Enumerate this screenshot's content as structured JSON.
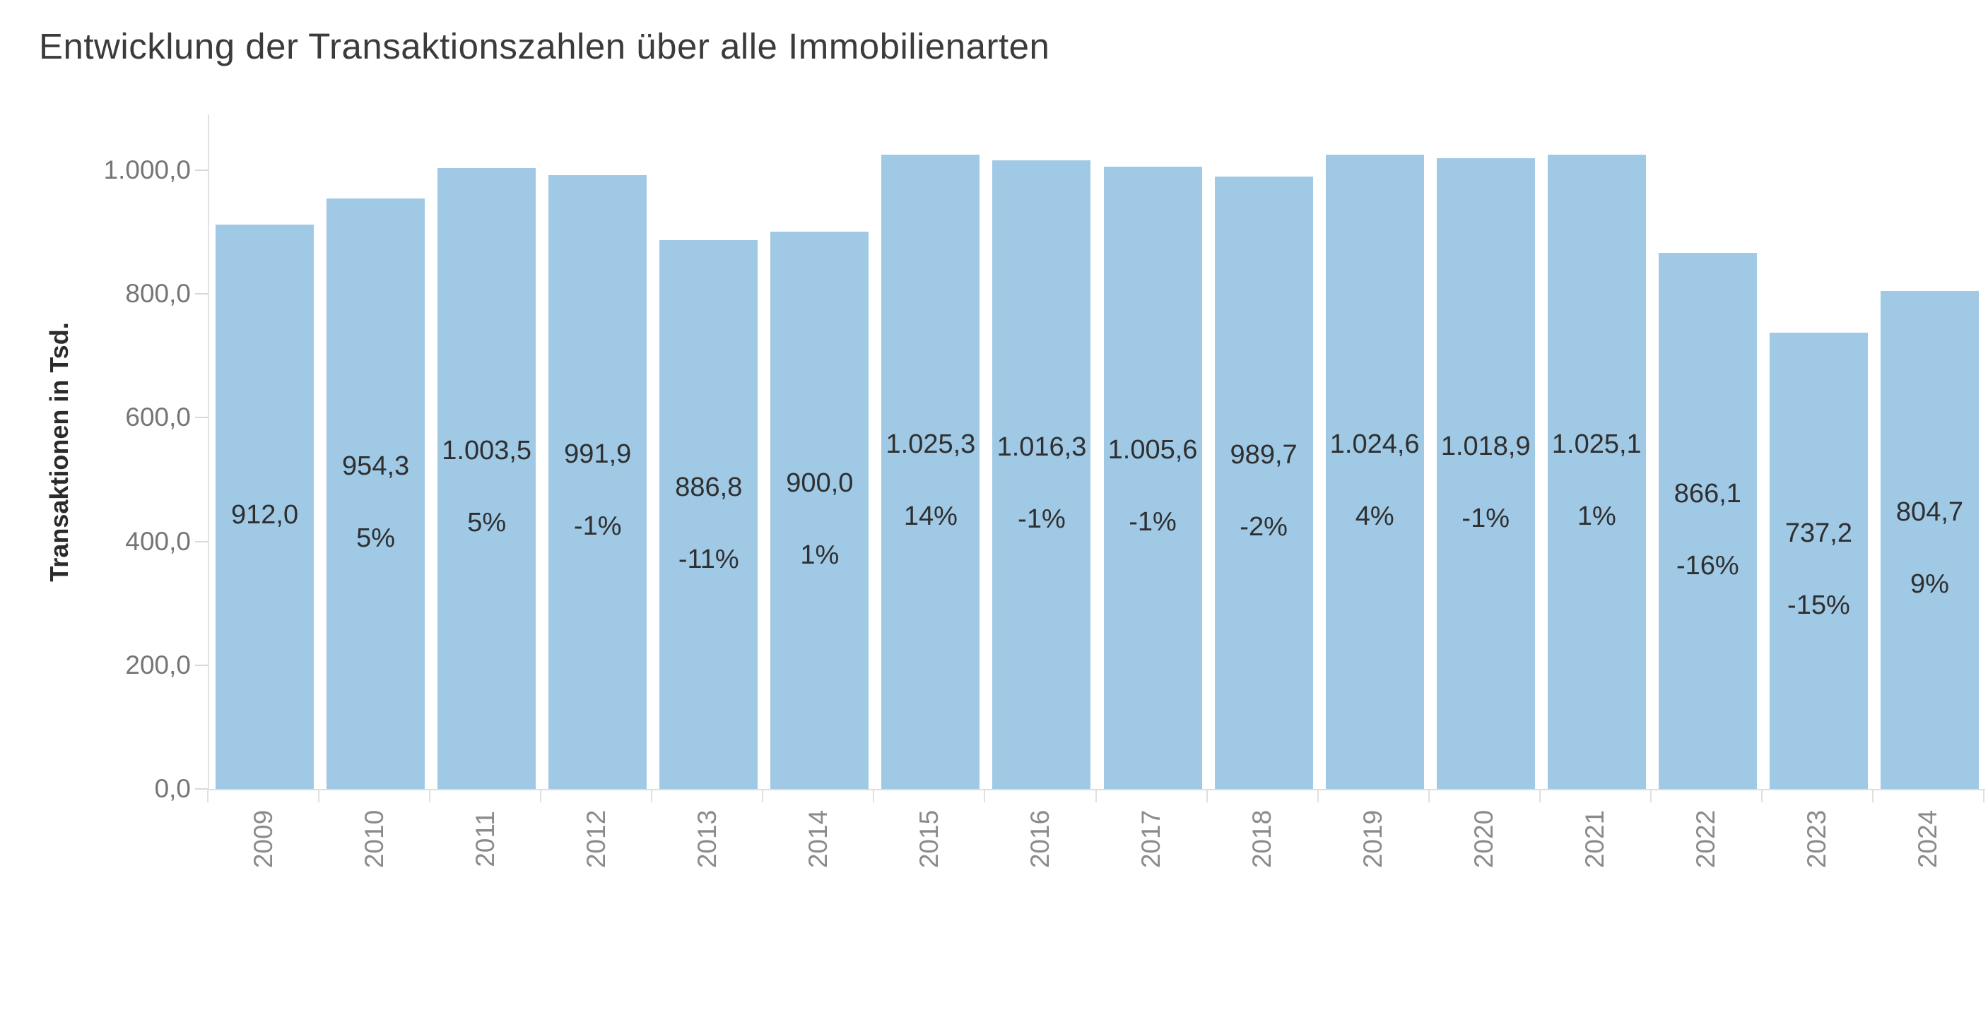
{
  "title": "Entwicklung der Transaktionszahlen über alle Immobilienarten",
  "chart_data": {
    "type": "bar",
    "title": "Entwicklung der Transaktionszahlen über alle Immobilienarten",
    "xlabel": "",
    "ylabel": "Transaktionen in Tsd.",
    "legend": "none",
    "grid": false,
    "bar_color": "#a0c9e6",
    "ylim": [
      0,
      1090
    ],
    "yticks": {
      "values": [
        0,
        200,
        400,
        600,
        800,
        1000
      ],
      "labels": [
        "0,0",
        "200,0",
        "400,0",
        "600,0",
        "800,0",
        "1.000,0"
      ]
    },
    "categories": [
      "2009",
      "2010",
      "2011",
      "2012",
      "2013",
      "2014",
      "2015",
      "2016",
      "2017",
      "2018",
      "2019",
      "2020",
      "2021",
      "2022",
      "2023",
      "2024"
    ],
    "values": [
      912.0,
      954.3,
      1003.5,
      991.9,
      886.8,
      900.0,
      1025.3,
      1016.3,
      1005.6,
      989.7,
      1024.6,
      1018.9,
      1025.1,
      866.1,
      737.2,
      804.7
    ],
    "value_labels": [
      "912,0",
      "954,3",
      "1.003,5",
      "991,9",
      "886,8",
      "900,0",
      "1.025,3",
      "1.016,3",
      "1.005,6",
      "989,7",
      "1.024,6",
      "1.018,9",
      "1.025,1",
      "866,1",
      "737,2",
      "804,7"
    ],
    "pct_change_labels": [
      "",
      "5%",
      "5%",
      "-1%",
      "-11%",
      "1%",
      "14%",
      "-1%",
      "-1%",
      "-2%",
      "4%",
      "-1%",
      "1%",
      "-16%",
      "-15%",
      "9%"
    ]
  },
  "colors": {
    "bar": "#a0c9e6",
    "title_text": "#3b3b3b",
    "label_text": "#2f2f2f",
    "axis_text": "#757575",
    "x_axis_text": "#8a8a8a",
    "axis_line": "#e2e2e2"
  }
}
